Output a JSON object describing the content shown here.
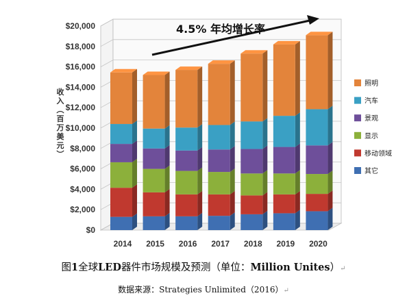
{
  "chart_data": {
    "type": "bar",
    "stacked": true,
    "style": "3d",
    "categories": [
      "2014",
      "2015",
      "2016",
      "2017",
      "2018",
      "2019",
      "2020"
    ],
    "series": [
      {
        "name": "其它",
        "color": "#3f6fb2",
        "values": [
          1300,
          1350,
          1350,
          1400,
          1550,
          1650,
          1850
        ]
      },
      {
        "name": "移动领域",
        "color": "#c0392f",
        "values": [
          2850,
          2350,
          2150,
          2100,
          1850,
          1850,
          1700
        ]
      },
      {
        "name": "显示",
        "color": "#8cb03b",
        "values": [
          2500,
          2300,
          2300,
          2200,
          2150,
          2050,
          1950
        ]
      },
      {
        "name": "景观",
        "color": "#6e4f9a",
        "values": [
          1800,
          2000,
          2000,
          2200,
          2400,
          2600,
          2800
        ]
      },
      {
        "name": "汽车",
        "color": "#3aa0c4",
        "values": [
          1950,
          1950,
          2250,
          2400,
          2700,
          3050,
          3550
        ]
      },
      {
        "name": "照明",
        "color": "#e3843b",
        "values": [
          5050,
          5250,
          5650,
          6000,
          6650,
          7000,
          7250
        ]
      }
    ],
    "ylabel": "收入（百万美元）",
    "ylim": [
      0,
      20000
    ],
    "yticks": [
      0,
      2000,
      4000,
      6000,
      8000,
      10000,
      12000,
      14000,
      16000,
      18000,
      20000
    ],
    "ytick_labels": [
      "$0",
      "$2,000",
      "$4,000",
      "$6,000",
      "$8,000",
      "$10,000",
      "$12,000",
      "$14,000",
      "$16,000",
      "$18,000",
      "$20,000"
    ],
    "grid": true,
    "legend_position": "right",
    "annotation": {
      "text": "4.5% 年均增长率",
      "arrow": true
    }
  },
  "caption": {
    "prefix": "图",
    "number": "1",
    "text_cn": "全球",
    "led": "LED",
    "text_cn2": "器件市场规模及预测（单位：",
    "unit": "Million Unites",
    "close": "）",
    "mark": "↵"
  },
  "source": {
    "label": "数据来源：",
    "value": "Strategies Unlimited（2016）",
    "mark": "↵"
  }
}
